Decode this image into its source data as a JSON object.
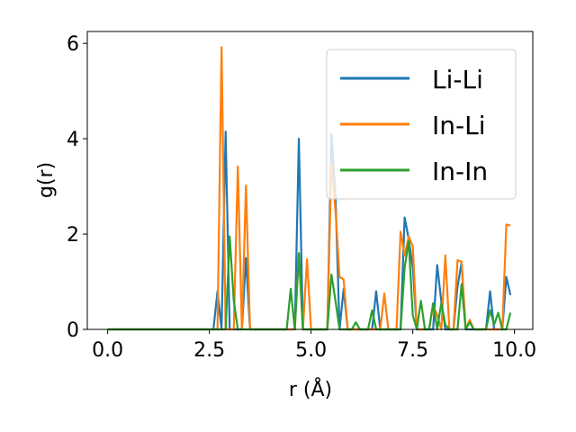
{
  "chart_data": {
    "type": "line",
    "xlabel": "r (Å)",
    "ylabel": "g(r)",
    "x": [
      0,
      0.1,
      0.2,
      0.3,
      0.4,
      0.5,
      0.6,
      0.7,
      0.8,
      0.9,
      1,
      1.1,
      1.2,
      1.3,
      1.4,
      1.5,
      1.6,
      1.7,
      1.8,
      1.9,
      2,
      2.1,
      2.2,
      2.3,
      2.4,
      2.5,
      2.6,
      2.7,
      2.8,
      2.9,
      3,
      3.1,
      3.2,
      3.3,
      3.4,
      3.5,
      3.6,
      3.7,
      3.8,
      3.9,
      4,
      4.1,
      4.2,
      4.3,
      4.4,
      4.5,
      4.6,
      4.7,
      4.8,
      4.9,
      5,
      5.1,
      5.2,
      5.3,
      5.4,
      5.5,
      5.6,
      5.7,
      5.8,
      5.9,
      6,
      6.1,
      6.2,
      6.3,
      6.4,
      6.5,
      6.6,
      6.7,
      6.8,
      6.9,
      7,
      7.1,
      7.2,
      7.3,
      7.4,
      7.5,
      7.6,
      7.7,
      7.8,
      7.9,
      8,
      8.1,
      8.2,
      8.3,
      8.4,
      8.5,
      8.6,
      8.7,
      8.8,
      8.9,
      9,
      9.1,
      9.2,
      9.3,
      9.4,
      9.5,
      9.6,
      9.7,
      9.8,
      9.9
    ],
    "series": [
      {
        "name": "Li-Li",
        "color": "#1f77b4",
        "values": [
          0,
          0,
          0,
          0,
          0,
          0,
          0,
          0,
          0,
          0,
          0,
          0,
          0,
          0,
          0,
          0,
          0,
          0,
          0,
          0,
          0,
          0,
          0,
          0,
          0,
          0,
          0,
          0.8,
          0,
          4.15,
          0,
          0,
          0,
          0,
          1.5,
          0,
          0,
          0,
          0,
          0,
          0,
          0,
          0,
          0,
          0,
          0,
          0,
          4.0,
          0,
          0,
          0,
          0,
          0,
          0,
          0,
          4.1,
          2.8,
          0,
          0.85,
          0,
          0,
          0,
          0,
          0,
          0,
          0,
          0.8,
          0,
          0,
          0,
          0,
          0,
          0,
          2.35,
          1.9,
          1.3,
          0,
          0,
          0,
          0,
          0,
          1.35,
          0.6,
          0,
          0,
          0,
          0.9,
          1.4,
          0,
          0,
          0,
          0,
          0,
          0,
          0.8,
          0,
          0,
          0,
          1.1,
          0.72
        ]
      },
      {
        "name": "In-Li",
        "color": "#ff7f0e",
        "values": [
          0,
          0,
          0,
          0,
          0,
          0,
          0,
          0,
          0,
          0,
          0,
          0,
          0,
          0,
          0,
          0,
          0,
          0,
          0,
          0,
          0,
          0,
          0,
          0,
          0,
          0,
          0,
          0,
          5.92,
          0,
          0,
          0,
          3.42,
          0,
          3.02,
          0,
          0,
          0,
          0,
          0,
          0,
          0,
          0,
          0,
          0,
          0,
          0,
          1.6,
          0,
          1.47,
          0,
          0,
          0,
          0,
          0,
          3.5,
          2.5,
          1.1,
          1.05,
          0,
          0,
          0,
          0,
          0,
          0,
          0,
          0,
          0,
          0.75,
          0,
          0,
          0,
          2.05,
          1.55,
          1.95,
          1.75,
          0,
          0,
          0,
          0,
          0.5,
          0.3,
          0,
          1.55,
          0,
          0,
          1.45,
          1.42,
          0,
          0.2,
          0,
          0,
          0,
          0,
          0,
          0,
          0,
          0,
          2.2,
          2.18
        ]
      },
      {
        "name": "In-In",
        "color": "#2ca02c",
        "values": [
          0,
          0,
          0,
          0,
          0,
          0,
          0,
          0,
          0,
          0,
          0,
          0,
          0,
          0,
          0,
          0,
          0,
          0,
          0,
          0,
          0,
          0,
          0,
          0,
          0,
          0,
          0,
          0,
          0,
          0,
          1.95,
          0.6,
          0,
          0,
          0,
          0,
          0,
          0,
          0,
          0,
          0,
          0,
          0,
          0,
          0,
          0.85,
          0,
          1.6,
          0,
          0,
          0,
          0,
          0,
          0,
          0,
          1.15,
          0.6,
          0,
          0,
          0,
          0,
          0.15,
          0,
          0,
          0,
          0.4,
          0,
          0,
          0,
          0,
          0,
          0,
          0,
          1.3,
          1.85,
          0.3,
          0,
          0.6,
          0,
          0,
          0.55,
          0,
          0.55,
          0.1,
          0,
          0,
          0,
          0.95,
          0,
          0.15,
          0,
          0,
          0,
          0,
          0.4,
          0.1,
          0.35,
          0,
          0,
          0.35
        ]
      }
    ],
    "xlim": [
      -0.5,
      10.45
    ],
    "ylim": [
      0,
      6.25
    ],
    "xticks": [
      {
        "value": 0,
        "label": "0.0"
      },
      2.5,
      {
        "value": 5,
        "label": "5.0"
      },
      7.5,
      {
        "value": 10,
        "label": "10.0"
      }
    ],
    "yticks": [
      0,
      2,
      4,
      6
    ],
    "legend": "upper right"
  }
}
